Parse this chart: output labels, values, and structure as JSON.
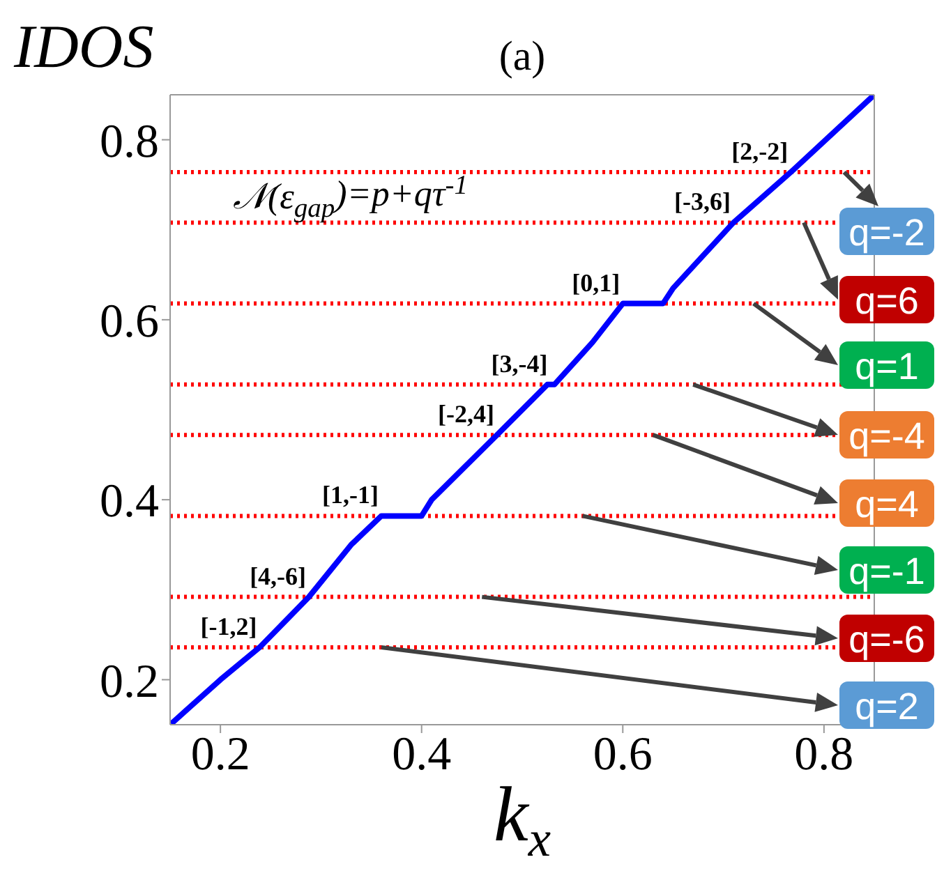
{
  "chart_data": {
    "type": "line",
    "title": "(a)",
    "xlabel": "k$_{x}$",
    "ylabel": "IDOS",
    "series": [
      {
        "color": "#0000ff",
        "x": [
          0.151,
          0.2,
          0.239,
          0.288,
          0.33,
          0.36,
          0.4,
          0.41,
          0.475,
          0.525,
          0.532,
          0.57,
          0.6,
          0.64,
          0.65,
          0.71,
          0.767,
          0.85
        ],
        "values": [
          0.151,
          0.2,
          0.236,
          0.292,
          0.35,
          0.382,
          0.382,
          0.4,
          0.472,
          0.528,
          0.528,
          0.575,
          0.618,
          0.618,
          0.635,
          0.708,
          0.764,
          0.85
        ]
      }
    ],
    "xlim": [
      0.15,
      0.85
    ],
    "ylim": [
      0.15,
      0.85
    ],
    "xticks": [
      0.2,
      0.4,
      0.6,
      0.8
    ],
    "yticks": [
      0.2,
      0.4,
      0.6,
      0.8
    ],
    "grid": false,
    "marker": "none",
    "line_style": "solid",
    "ref_lines": [
      {
        "axis": "y",
        "value": 0.764,
        "color": "#ff0000",
        "line_style": "dotted"
      },
      {
        "axis": "y",
        "value": 0.708,
        "color": "#ff0000",
        "line_style": "dotted"
      },
      {
        "axis": "y",
        "value": 0.618,
        "color": "#ff0000",
        "line_style": "dotted"
      },
      {
        "axis": "y",
        "value": 0.528,
        "color": "#ff0000",
        "line_style": "dotted"
      },
      {
        "axis": "y",
        "value": 0.472,
        "color": "#ff0000",
        "line_style": "dotted"
      },
      {
        "axis": "y",
        "value": 0.382,
        "color": "#ff0000",
        "line_style": "dotted"
      },
      {
        "axis": "y",
        "value": 0.292,
        "color": "#ff0000",
        "line_style": "dotted"
      },
      {
        "axis": "y",
        "value": 0.236,
        "color": "#ff0000",
        "line_style": "dotted"
      }
    ],
    "annotations": [
      "𝒩(ε$_{gap}$)=p+qτ$^{-1}$",
      {
        "text": "q=-2",
        "x": 0.82,
        "y": 0.764
      },
      {
        "text": "q=6",
        "x": 0.78,
        "y": 0.708
      },
      {
        "text": "q=1",
        "x": 0.73,
        "y": 0.618
      },
      {
        "text": "q=-4",
        "x": 0.67,
        "y": 0.528
      },
      {
        "text": "q=4",
        "x": 0.63,
        "y": 0.472
      },
      {
        "text": "q=-1",
        "x": 0.56,
        "y": 0.382
      },
      {
        "text": "q=-6",
        "x": 0.46,
        "y": 0.292
      },
      {
        "text": "q=2",
        "x": 0.36,
        "y": 0.236
      },
      {
        "text": "[2,-2]",
        "x": 0.767,
        "y": 0.764
      },
      {
        "text": "[-3,6]",
        "x": 0.71,
        "y": 0.708
      },
      {
        "text": "[0,1]",
        "x": 0.6,
        "y": 0.618
      },
      {
        "text": "[3,-4]",
        "x": 0.528,
        "y": 0.528
      },
      {
        "text": "[-2,4]",
        "x": 0.475,
        "y": 0.472
      },
      {
        "text": "[1,-1]",
        "x": 0.36,
        "y": 0.382
      },
      {
        "text": "[4,-6]",
        "x": 0.288,
        "y": 0.292
      },
      {
        "text": "[-1,2]",
        "x": 0.239,
        "y": 0.236
      }
    ]
  }
}
